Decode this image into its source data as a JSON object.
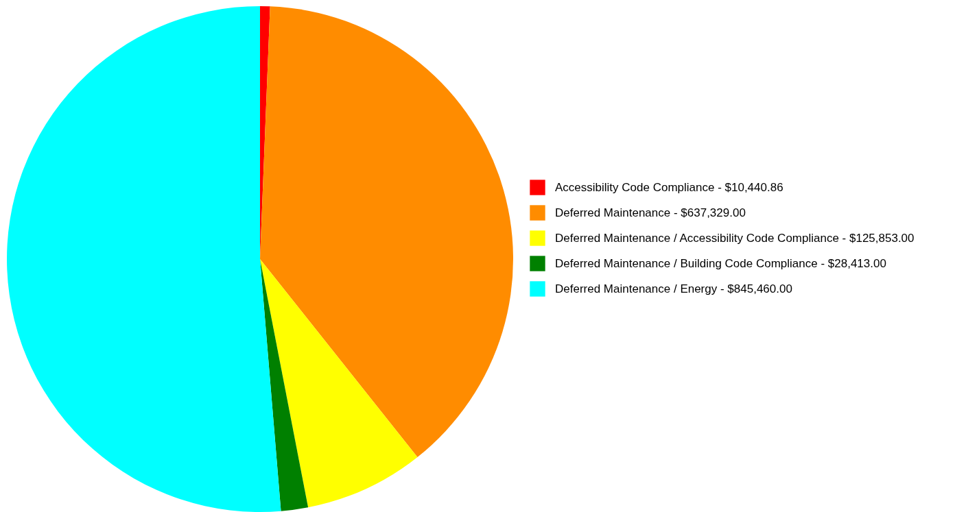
{
  "chart_data": {
    "type": "pie",
    "categories": [
      "Accessibility Code Compliance",
      "Deferred Maintenance",
      "Deferred Maintenance / Accessibility Code Compliance",
      "Deferred Maintenance / Building Code Compliance",
      "Deferred Maintenance / Energy"
    ],
    "values": [
      10440.86,
      637329,
      125853,
      28413,
      845460
    ],
    "value_labels": [
      "$10,440.86",
      "$637,329.00",
      "$125,853.00",
      "$28,413.00",
      "$845,460.00"
    ],
    "colors": [
      "#ff0000",
      "#ff8c00",
      "#ffff00",
      "#008000",
      "#00ffff"
    ],
    "legend": "right"
  }
}
